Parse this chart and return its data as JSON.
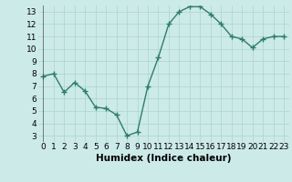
{
  "x": [
    0,
    1,
    2,
    3,
    4,
    5,
    6,
    7,
    8,
    9,
    10,
    11,
    12,
    13,
    14,
    15,
    16,
    17,
    18,
    19,
    20,
    21,
    22,
    23
  ],
  "y": [
    7.8,
    8.0,
    6.5,
    7.3,
    6.6,
    5.3,
    5.2,
    4.7,
    3.0,
    3.3,
    7.0,
    9.3,
    12.0,
    13.0,
    13.4,
    13.4,
    12.8,
    12.0,
    11.0,
    10.8,
    10.1,
    10.8,
    11.0,
    11.0
  ],
  "line_color": "#2e7d6e",
  "marker": "+",
  "marker_size": 4,
  "bg_color": "#cceae8",
  "grid_color": "#b0d8d4",
  "xlabel": "Humidex (Indice chaleur)",
  "xlim": [
    -0.5,
    23.5
  ],
  "ylim": [
    2.5,
    13.5
  ],
  "yticks": [
    3,
    4,
    5,
    6,
    7,
    8,
    9,
    10,
    11,
    12,
    13
  ],
  "xticks": [
    0,
    1,
    2,
    3,
    4,
    5,
    6,
    7,
    8,
    9,
    10,
    11,
    12,
    13,
    14,
    15,
    16,
    17,
    18,
    19,
    20,
    21,
    22,
    23
  ],
  "tick_fontsize": 6.5,
  "label_fontsize": 7.5,
  "line_width": 1.0
}
